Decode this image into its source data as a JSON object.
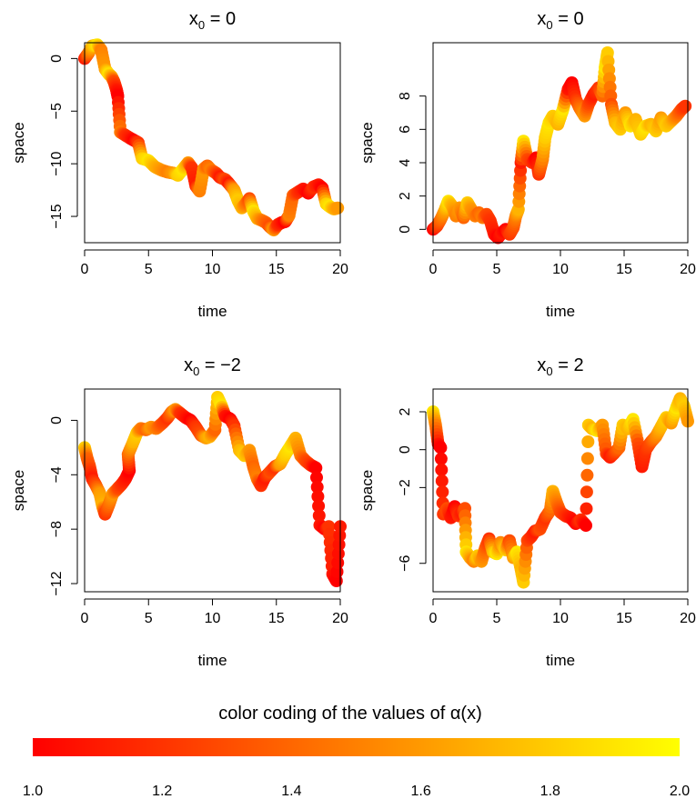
{
  "colors": {
    "low": "#FF0000",
    "mid": "#FF8000",
    "high": "#FFFF00",
    "axis": "#000000",
    "background": "#FFFFFF"
  },
  "colorbar": {
    "title": "color coding of the values of α(x)",
    "ticks": [
      "1.0",
      "1.2",
      "1.4",
      "1.6",
      "1.8",
      "2.0"
    ],
    "range": [
      1.0,
      2.0
    ]
  },
  "chart_data": [
    {
      "type": "scatter",
      "title_main": "x",
      "title_sub": "0",
      "title_rest": " = 0",
      "xlabel": "time",
      "ylabel": "space",
      "xlim": [
        0,
        20
      ],
      "ylim": [
        -17.5,
        1.5
      ],
      "xticks": [
        "0",
        "5",
        "10",
        "15",
        "20"
      ],
      "yticks": [
        0,
        -5,
        -10,
        -15
      ],
      "ytick_labels": [
        "0",
        "−5",
        "−10",
        "−15"
      ],
      "path": [
        [
          0,
          0
        ],
        [
          0.3,
          0.5
        ],
        [
          0.6,
          1.2
        ],
        [
          1.0,
          1.3
        ],
        [
          1.3,
          0.8
        ],
        [
          1.6,
          -1
        ],
        [
          1.9,
          -1.5
        ],
        [
          2.1,
          -1.7
        ],
        [
          2.3,
          -2.2
        ],
        [
          2.5,
          -3
        ],
        [
          2.6,
          -3.6
        ],
        [
          2.8,
          -7
        ],
        [
          3.2,
          -7.3
        ],
        [
          3.6,
          -7.6
        ],
        [
          3.9,
          -7.8
        ],
        [
          4.2,
          -8
        ],
        [
          4.5,
          -9.5
        ],
        [
          5,
          -9.7
        ],
        [
          5.5,
          -10.3
        ],
        [
          6,
          -10.6
        ],
        [
          6.5,
          -10.8
        ],
        [
          7,
          -10.9
        ],
        [
          7.3,
          -11.1
        ],
        [
          7.7,
          -10.5
        ],
        [
          8.1,
          -9.9
        ],
        [
          8.4,
          -10.4
        ],
        [
          8.7,
          -12.1
        ],
        [
          9,
          -12.6
        ],
        [
          9.3,
          -10.5
        ],
        [
          9.6,
          -10.2
        ],
        [
          9.9,
          -10.6
        ],
        [
          10.3,
          -10.9
        ],
        [
          10.6,
          -11.3
        ],
        [
          11,
          -11.5
        ],
        [
          11.3,
          -11.9
        ],
        [
          11.7,
          -12.5
        ],
        [
          12,
          -13.5
        ],
        [
          12.3,
          -14.2
        ],
        [
          12.6,
          -13.8
        ],
        [
          12.9,
          -13.3
        ],
        [
          13.2,
          -14.5
        ],
        [
          13.5,
          -15.2
        ],
        [
          13.9,
          -15.4
        ],
        [
          14.2,
          -15.6
        ],
        [
          14.5,
          -16
        ],
        [
          14.8,
          -16.3
        ],
        [
          15.1,
          -15.8
        ],
        [
          15.4,
          -15.6
        ],
        [
          15.7,
          -15.5
        ],
        [
          16,
          -14.9
        ],
        [
          16.3,
          -13
        ],
        [
          16.7,
          -12.7
        ],
        [
          17.1,
          -12.4
        ],
        [
          17.5,
          -12.8
        ],
        [
          17.9,
          -12.2
        ],
        [
          18.3,
          -12
        ],
        [
          18.6,
          -12.3
        ],
        [
          18.9,
          -13.8
        ],
        [
          19.2,
          -14.1
        ],
        [
          19.5,
          -14.3
        ],
        [
          19.8,
          -14.2
        ]
      ],
      "alpha": [
        1.1,
        1.4,
        1.7,
        1.9,
        1.5,
        1.6,
        1.9,
        1.7,
        1.3,
        1.1,
        1.0,
        1.5,
        1.2,
        1.1,
        1.0,
        1.2,
        1.8,
        1.9,
        1.7,
        1.6,
        1.5,
        1.6,
        1.8,
        1.9,
        1.6,
        1.2,
        1.1,
        1.5,
        1.6,
        1.4,
        1.5,
        1.3,
        1.1,
        1.3,
        1.1,
        1.6,
        1.8,
        1.7,
        1.5,
        1.3,
        1.9,
        1.7,
        1.5,
        1.4,
        1.3,
        1.6,
        1.2,
        1.1,
        1.0,
        1.5,
        1.4,
        1.2,
        1.1,
        1.0,
        1.2,
        1.1,
        1.0,
        1.8,
        1.9,
        1.7,
        1.6
      ]
    },
    {
      "type": "scatter",
      "title_main": "x",
      "title_sub": "0",
      "title_rest": " = 0",
      "xlabel": "time",
      "ylabel": "space",
      "xlim": [
        0,
        20
      ],
      "ylim": [
        -0.8,
        11.2
      ],
      "xticks": [
        "0",
        "5",
        "10",
        "15",
        "20"
      ],
      "yticks": [
        0,
        2,
        4,
        6,
        8
      ],
      "ytick_labels": [
        "0",
        "2",
        "4",
        "6",
        "8"
      ],
      "path": [
        [
          0,
          0
        ],
        [
          0.3,
          0.2
        ],
        [
          0.6,
          0.6
        ],
        [
          0.9,
          1.1
        ],
        [
          1.2,
          1.7
        ],
        [
          1.5,
          1.4
        ],
        [
          1.8,
          0.8
        ],
        [
          2.1,
          1.3
        ],
        [
          2.4,
          0.7
        ],
        [
          2.7,
          1.6
        ],
        [
          3,
          1.2
        ],
        [
          3.3,
          0.8
        ],
        [
          3.6,
          1
        ],
        [
          3.9,
          0.7
        ],
        [
          4.2,
          0.9
        ],
        [
          4.5,
          0.5
        ],
        [
          4.8,
          -0.3
        ],
        [
          5.1,
          -0.5
        ],
        [
          5.4,
          -0.2
        ],
        [
          5.7,
          0
        ],
        [
          6,
          -0.3
        ],
        [
          6.3,
          0.1
        ],
        [
          6.5,
          0.8
        ],
        [
          6.7,
          1.2
        ],
        [
          6.9,
          4
        ],
        [
          7.1,
          5.3
        ],
        [
          7.4,
          4.2
        ],
        [
          7.8,
          4
        ],
        [
          8.1,
          4.3
        ],
        [
          8.3,
          3.3
        ],
        [
          8.6,
          4.2
        ],
        [
          8.8,
          5.5
        ],
        [
          9.1,
          6.4
        ],
        [
          9.4,
          6.8
        ],
        [
          9.8,
          6.3
        ],
        [
          10.2,
          7.2
        ],
        [
          10.6,
          8.4
        ],
        [
          10.9,
          8.8
        ],
        [
          11.2,
          7.8
        ],
        [
          11.5,
          7.3
        ],
        [
          11.9,
          6.8
        ],
        [
          12.2,
          7.5
        ],
        [
          12.6,
          8.1
        ],
        [
          13,
          8.5
        ],
        [
          13.3,
          8
        ],
        [
          13.5,
          9.7
        ],
        [
          13.7,
          10.6
        ],
        [
          14,
          7.5
        ],
        [
          14.3,
          6.4
        ],
        [
          14.7,
          6
        ],
        [
          15.1,
          7
        ],
        [
          15.5,
          6.2
        ],
        [
          15.9,
          6.6
        ],
        [
          16.3,
          5.7
        ],
        [
          16.7,
          6.2
        ],
        [
          17.1,
          6.3
        ],
        [
          17.5,
          5.9
        ],
        [
          17.9,
          6.7
        ],
        [
          18.3,
          6.2
        ],
        [
          18.7,
          6.5
        ],
        [
          19.1,
          6.8
        ],
        [
          19.5,
          7.2
        ],
        [
          19.8,
          7.4
        ]
      ],
      "alpha": [
        1.0,
        1.2,
        1.4,
        1.6,
        1.9,
        1.7,
        1.5,
        1.6,
        1.4,
        1.8,
        1.6,
        1.5,
        1.4,
        1.5,
        1.3,
        1.2,
        1.1,
        1.0,
        1.1,
        1.0,
        1.2,
        1.3,
        1.5,
        1.7,
        1.1,
        1.9,
        1.3,
        1.2,
        1.0,
        1.2,
        1.5,
        1.8,
        1.9,
        1.8,
        1.7,
        1.9,
        1.1,
        1.0,
        1.2,
        1.4,
        1.6,
        1.3,
        1.1,
        1.2,
        1.4,
        1.9,
        1.8,
        1.3,
        1.7,
        1.8,
        1.6,
        1.9,
        1.7,
        1.8,
        1.9,
        1.7,
        1.8,
        1.6,
        1.8,
        1.7,
        1.5,
        1.3,
        1.2
      ]
    },
    {
      "type": "scatter",
      "title_main": "x",
      "title_sub": "0",
      "title_rest": " = −2",
      "xlabel": "time",
      "ylabel": "space",
      "xlim": [
        0,
        20
      ],
      "ylim": [
        -12.6,
        2.3
      ],
      "xticks": [
        "0",
        "5",
        "10",
        "15",
        "20"
      ],
      "yticks": [
        0,
        -4,
        -8,
        -12
      ],
      "ytick_labels": [
        "0",
        "−4",
        "−8",
        "−12"
      ],
      "path": [
        [
          0,
          -2
        ],
        [
          0.2,
          -2.8
        ],
        [
          0.4,
          -3.4
        ],
        [
          0.6,
          -4.3
        ],
        [
          0.9,
          -4.8
        ],
        [
          1.2,
          -5.4
        ],
        [
          1.4,
          -6.3
        ],
        [
          1.6,
          -6.9
        ],
        [
          1.9,
          -6.2
        ],
        [
          2.2,
          -5.4
        ],
        [
          2.6,
          -5
        ],
        [
          2.9,
          -4.7
        ],
        [
          3.2,
          -4.3
        ],
        [
          3.5,
          -3.7
        ],
        [
          3.4,
          -2.5
        ],
        [
          3.8,
          -1.6
        ],
        [
          4.1,
          -0.9
        ],
        [
          4.4,
          -0.6
        ],
        [
          4.8,
          -0.7
        ],
        [
          5.2,
          -0.5
        ],
        [
          5.6,
          -0.6
        ],
        [
          6.1,
          -0.2
        ],
        [
          6.5,
          0.2
        ],
        [
          6.8,
          0.6
        ],
        [
          7.1,
          0.8
        ],
        [
          7.5,
          0.5
        ],
        [
          7.9,
          0.2
        ],
        [
          8.3,
          0
        ],
        [
          8.7,
          -0.5
        ],
        [
          9.1,
          -1.1
        ],
        [
          9.5,
          -1.3
        ],
        [
          9.8,
          -1.2
        ],
        [
          10.2,
          -0.7
        ],
        [
          10.4,
          1.7
        ],
        [
          10.7,
          1.1
        ],
        [
          11,
          0.3
        ],
        [
          11.4,
          0.1
        ],
        [
          11.7,
          -0.4
        ],
        [
          12.1,
          -2.2
        ],
        [
          12.5,
          -2.6
        ],
        [
          12.9,
          -2.2
        ],
        [
          13.2,
          -3.4
        ],
        [
          13.5,
          -4.3
        ],
        [
          13.8,
          -4.8
        ],
        [
          14.1,
          -4.2
        ],
        [
          14.5,
          -3.8
        ],
        [
          14.9,
          -3.4
        ],
        [
          15.3,
          -3.2
        ],
        [
          15.7,
          -2.5
        ],
        [
          16.1,
          -1.9
        ],
        [
          16.5,
          -1.3
        ],
        [
          16.9,
          -2.6
        ],
        [
          17.3,
          -3
        ],
        [
          17.7,
          -3.3
        ],
        [
          18.1,
          -3.5
        ],
        [
          18.4,
          -7.7
        ],
        [
          18.8,
          -8
        ],
        [
          19.1,
          -7.8
        ],
        [
          19.4,
          -11.3
        ],
        [
          19.7,
          -11.8
        ],
        [
          20,
          -7.8
        ]
      ],
      "alpha": [
        1.8,
        1.4,
        1.3,
        1.1,
        1.3,
        1.6,
        1.7,
        1.2,
        1.4,
        1.6,
        1.3,
        1.2,
        1.1,
        1.0,
        1.4,
        1.7,
        1.8,
        1.5,
        1.4,
        1.6,
        1.5,
        1.3,
        1.2,
        1.4,
        1.6,
        1.2,
        1.1,
        1.0,
        1.2,
        1.3,
        1.6,
        1.7,
        1.4,
        1.8,
        1.9,
        1.1,
        1.0,
        1.2,
        1.7,
        1.8,
        1.6,
        1.4,
        1.5,
        1.2,
        1.1,
        1.3,
        1.2,
        1.6,
        1.8,
        1.9,
        1.7,
        1.5,
        1.3,
        1.2,
        1.0,
        1.1,
        1.0,
        1.2,
        1.1,
        1.0,
        1.1
      ]
    },
    {
      "type": "scatter",
      "title_main": "x",
      "title_sub": "0",
      "title_rest": " = 2",
      "xlabel": "time",
      "ylabel": "space",
      "xlim": [
        0,
        20
      ],
      "ylim": [
        -7.5,
        3.2
      ],
      "xticks": [
        "0",
        "5",
        "10",
        "15",
        "20"
      ],
      "yticks": [
        2,
        0,
        -2,
        -6
      ],
      "ytick_labels": [
        "2",
        "0",
        "−2",
        "−6"
      ],
      "path": [
        [
          0,
          2
        ],
        [
          0.2,
          1.3
        ],
        [
          0.4,
          0.3
        ],
        [
          0.6,
          0.1
        ],
        [
          0.8,
          -3.4
        ],
        [
          1.1,
          -3.1
        ],
        [
          1.4,
          -3.6
        ],
        [
          1.7,
          -3
        ],
        [
          2,
          -3.5
        ],
        [
          2.3,
          -3.3
        ],
        [
          2.5,
          -3.1
        ],
        [
          2.6,
          -5.4
        ],
        [
          2.9,
          -5.7
        ],
        [
          3.2,
          -5.9
        ],
        [
          3.5,
          -5.6
        ],
        [
          3.8,
          -5.9
        ],
        [
          4.1,
          -5.2
        ],
        [
          4.4,
          -4.7
        ],
        [
          4.7,
          -5.4
        ],
        [
          5,
          -5.5
        ],
        [
          5.3,
          -4.9
        ],
        [
          5.7,
          -5.3
        ],
        [
          6,
          -4.8
        ],
        [
          6.3,
          -5.7
        ],
        [
          6.6,
          -5.4
        ],
        [
          6.9,
          -6.3
        ],
        [
          7.1,
          -7
        ],
        [
          7.4,
          -4.8
        ],
        [
          7.7,
          -4.6
        ],
        [
          8,
          -4.3
        ],
        [
          8.4,
          -4.2
        ],
        [
          8.8,
          -3.6
        ],
        [
          9.2,
          -3.2
        ],
        [
          9.4,
          -2.2
        ],
        [
          9.7,
          -2.8
        ],
        [
          10,
          -3.3
        ],
        [
          10.4,
          -3.5
        ],
        [
          10.8,
          -3.6
        ],
        [
          11.2,
          -3.9
        ],
        [
          11.6,
          -3.7
        ],
        [
          12,
          -4
        ],
        [
          12.2,
          1.3
        ],
        [
          12.5,
          1.1
        ],
        [
          12.9,
          1
        ],
        [
          13.3,
          1.3
        ],
        [
          13.6,
          -0.2
        ],
        [
          13.9,
          -0.4
        ],
        [
          14.2,
          -0.2
        ],
        [
          14.6,
          0.1
        ],
        [
          14.9,
          1.3
        ],
        [
          15.3,
          1.1
        ],
        [
          15.7,
          1.6
        ],
        [
          16.1,
          0.3
        ],
        [
          16.4,
          -0.9
        ],
        [
          16.7,
          0
        ],
        [
          17.1,
          0.4
        ],
        [
          17.5,
          0.7
        ],
        [
          17.9,
          1.2
        ],
        [
          18.3,
          1.7
        ],
        [
          18.7,
          1.4
        ],
        [
          19.1,
          2.2
        ],
        [
          19.4,
          2.7
        ],
        [
          19.7,
          2.3
        ],
        [
          20,
          1.5
        ]
      ],
      "alpha": [
        1.9,
        1.5,
        1.1,
        1.0,
        1.2,
        1.3,
        1.1,
        1.0,
        1.2,
        1.1,
        1.3,
        1.9,
        1.7,
        1.5,
        1.8,
        1.6,
        1.4,
        1.2,
        1.7,
        1.9,
        1.5,
        1.8,
        1.3,
        1.6,
        1.9,
        1.7,
        1.8,
        1.3,
        1.2,
        1.1,
        1.3,
        1.2,
        1.4,
        1.7,
        1.5,
        1.3,
        1.2,
        1.1,
        1.0,
        1.2,
        1.0,
        1.8,
        1.7,
        1.9,
        1.6,
        1.3,
        1.1,
        1.2,
        1.4,
        1.8,
        1.7,
        1.9,
        1.3,
        1.1,
        1.2,
        1.3,
        1.5,
        1.7,
        1.8,
        1.6,
        1.9,
        1.7,
        1.8,
        1.6
      ]
    }
  ]
}
